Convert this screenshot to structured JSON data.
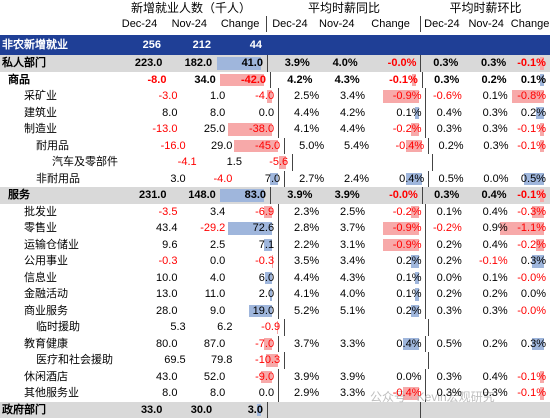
{
  "header": {
    "groups": [
      "新增就业人数（千人）",
      "平均时薪同比",
      "平均时薪环比"
    ],
    "subheaders": [
      "Dec-24",
      "Nov-24",
      "Change",
      "Dec-24",
      "Nov-24",
      "Change",
      "Dec-24",
      "Nov-24",
      "Change"
    ]
  },
  "banner": {
    "name": "非农新增就业",
    "values": [
      "256",
      "212",
      "44",
      "",
      "",
      "",
      "",
      "",
      ""
    ]
  },
  "rows": [
    {
      "name": "私人部门",
      "indent": 0,
      "shade": true,
      "bold": true,
      "v": [
        "223.0",
        "182.0",
        "41.0",
        "3.9%",
        "4.0%",
        "-0.0%",
        "0.3%",
        "0.3%",
        "-0.1%"
      ]
    },
    {
      "name": "商品",
      "indent": 1,
      "shade": false,
      "bold": true,
      "v": [
        "-8.0",
        "34.0",
        "-42.0",
        "4.2%",
        "4.3%",
        "-0.1%",
        "0.3%",
        "0.2%",
        "0.1%"
      ]
    },
    {
      "name": "采矿业",
      "indent": 2,
      "shade": false,
      "bold": false,
      "v": [
        "-3.0",
        "1.0",
        "-4.0",
        "2.5%",
        "3.4%",
        "-0.9%",
        "-0.6%",
        "0.1%",
        "-0.8%"
      ]
    },
    {
      "name": "建筑业",
      "indent": 2,
      "shade": false,
      "bold": false,
      "v": [
        "8.0",
        "8.0",
        "0.0",
        "4.4%",
        "4.2%",
        "0.1%",
        "0.4%",
        "0.3%",
        "0.2%"
      ]
    },
    {
      "name": "制造业",
      "indent": 2,
      "shade": false,
      "bold": false,
      "v": [
        "-13.0",
        "25.0",
        "-38.0",
        "4.1%",
        "4.4%",
        "-0.2%",
        "0.3%",
        "0.3%",
        "-0.1%"
      ]
    },
    {
      "name": "耐用品",
      "indent": 3,
      "shade": false,
      "bold": false,
      "v": [
        "-16.0",
        "29.0",
        "-45.0",
        "5.0%",
        "5.4%",
        "-0.4%",
        "0.2%",
        "0.3%",
        "-0.1%"
      ]
    },
    {
      "name": "汽车及零部件",
      "indent": 4,
      "shade": false,
      "bold": false,
      "v": [
        "-4.1",
        "1.5",
        "-5.6",
        "",
        "",
        "",
        "",
        "",
        ""
      ]
    },
    {
      "name": "非耐用品",
      "indent": 3,
      "shade": false,
      "bold": false,
      "v": [
        "3.0",
        "-4.0",
        "7.0",
        "2.7%",
        "2.4%",
        "0.4%",
        "0.5%",
        "0.0%",
        "0.5%"
      ]
    },
    {
      "name": "服务",
      "indent": 1,
      "shade": true,
      "bold": true,
      "v": [
        "231.0",
        "148.0",
        "83.0",
        "3.9%",
        "3.9%",
        "-0.0%",
        "0.3%",
        "0.4%",
        "-0.1%"
      ]
    },
    {
      "name": "批发业",
      "indent": 2,
      "shade": false,
      "bold": false,
      "v": [
        "-3.5",
        "3.4",
        "-6.9",
        "2.3%",
        "2.5%",
        "-0.2%",
        "0.1%",
        "0.4%",
        "-0.3%"
      ]
    },
    {
      "name": "零售业",
      "indent": 2,
      "shade": false,
      "bold": false,
      "v": [
        "43.4",
        "-29.2",
        "72.6",
        "2.8%",
        "3.7%",
        "-0.9%",
        "-0.2%",
        "0.9%",
        "-1.1%"
      ]
    },
    {
      "name": "运输仓储业",
      "indent": 2,
      "shade": false,
      "bold": false,
      "v": [
        "9.6",
        "2.5",
        "7.1",
        "2.2%",
        "3.1%",
        "-0.9%",
        "0.2%",
        "0.4%",
        "-0.2%"
      ]
    },
    {
      "name": "公用事业",
      "indent": 2,
      "shade": false,
      "bold": false,
      "v": [
        "-0.3",
        "0.0",
        "-0.3",
        "3.5%",
        "3.4%",
        "0.2%",
        "0.2%",
        "-0.1%",
        "0.3%"
      ]
    },
    {
      "name": "信息业",
      "indent": 2,
      "shade": false,
      "bold": false,
      "v": [
        "10.0",
        "4.0",
        "6.0",
        "4.4%",
        "4.3%",
        "0.1%",
        "0.0%",
        "0.1%",
        "-0.0%"
      ]
    },
    {
      "name": "金融活动",
      "indent": 2,
      "shade": false,
      "bold": false,
      "v": [
        "13.0",
        "11.0",
        "2.0",
        "4.1%",
        "4.0%",
        "0.1%",
        "0.2%",
        "0.2%",
        "0.0%"
      ]
    },
    {
      "name": "商业服务",
      "indent": 2,
      "shade": false,
      "bold": false,
      "v": [
        "28.0",
        "9.0",
        "19.0",
        "5.2%",
        "5.1%",
        "0.2%",
        "0.3%",
        "0.3%",
        "-0.0%"
      ]
    },
    {
      "name": "临时援助",
      "indent": 3,
      "shade": false,
      "bold": false,
      "v": [
        "5.3",
        "6.2",
        "-0.9",
        "",
        "",
        "",
        "",
        "",
        ""
      ]
    },
    {
      "name": "教育健康",
      "indent": 2,
      "shade": false,
      "bold": false,
      "v": [
        "80.0",
        "87.0",
        "-7.0",
        "3.7%",
        "3.3%",
        "0.4%",
        "0.5%",
        "0.2%",
        "0.3%"
      ]
    },
    {
      "name": "医疗和社会援助",
      "indent": 3,
      "shade": false,
      "bold": false,
      "v": [
        "69.5",
        "79.8",
        "-10.3",
        "",
        "",
        "",
        "",
        "",
        ""
      ]
    },
    {
      "name": "休闲酒店",
      "indent": 2,
      "shade": false,
      "bold": false,
      "v": [
        "43.0",
        "52.0",
        "-9.0",
        "3.9%",
        "3.9%",
        "0.0%",
        "0.3%",
        "0.4%",
        "-0.1%"
      ]
    },
    {
      "name": "其他服务业",
      "indent": 2,
      "shade": false,
      "bold": false,
      "v": [
        "8.0",
        "8.0",
        "0.0",
        "2.9%",
        "3.3%",
        "-0.4%",
        "0.3%",
        "0.3%",
        "-0.1%"
      ]
    },
    {
      "name": "政府部门",
      "indent": 0,
      "shade": true,
      "bold": true,
      "v": [
        "33.0",
        "30.0",
        "3.0",
        "",
        "",
        "",
        "",
        "",
        ""
      ]
    }
  ],
  "watermark": "公众号 · Kevin宏观研究"
}
